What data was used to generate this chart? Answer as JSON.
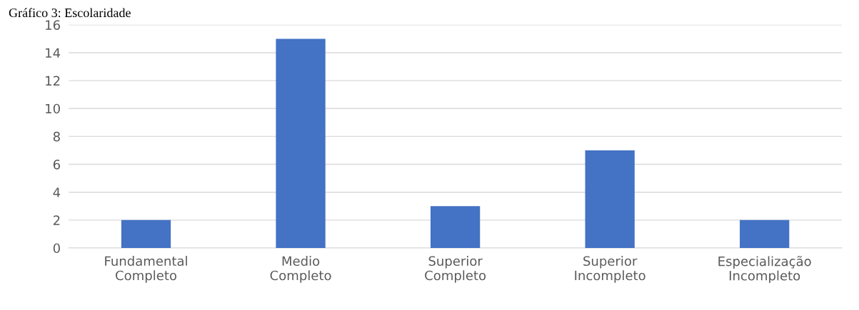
{
  "chart_data": {
    "type": "bar",
    "title": "Gráfico 3: Escolaridade",
    "categories": [
      "Fundamental\nCompleto",
      "Medio\nCompleto",
      "Superior\nCompleto",
      "Superior\nIncompleto",
      "Especialização\nIncompleto"
    ],
    "values": [
      2,
      15,
      3,
      7,
      2
    ],
    "color": "#4472c4",
    "ylim": [
      0,
      16
    ],
    "yticks": [
      0,
      2,
      4,
      6,
      8,
      10,
      12,
      14,
      16
    ],
    "grid": "y"
  }
}
